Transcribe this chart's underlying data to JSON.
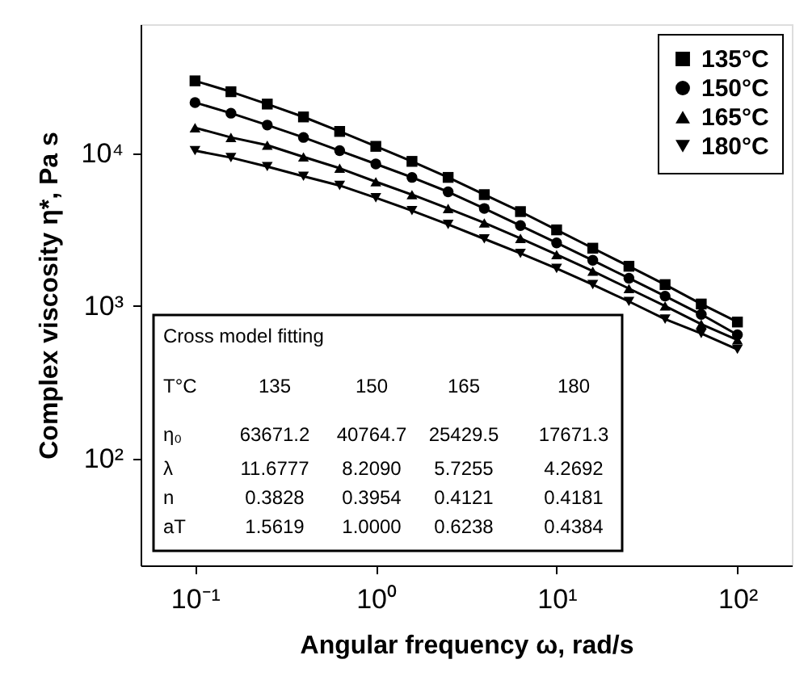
{
  "chart_data": {
    "type": "line",
    "xlabel": "Angular frequency ω, rad/s",
    "ylabel": "Complex viscosity η*, Pa s",
    "log": "xy",
    "xlim": [
      0.05,
      200
    ],
    "ylim": [
      20,
      70000
    ],
    "xticks": [
      {
        "value": 0.1,
        "label": "10⁻¹"
      },
      {
        "value": 1,
        "label": "10⁰"
      },
      {
        "value": 10,
        "label": "10¹"
      },
      {
        "value": 100,
        "label": "10²"
      }
    ],
    "yticks": [
      {
        "value": 100,
        "label": "10²"
      },
      {
        "value": 1000,
        "label": "10³"
      },
      {
        "value": 10000,
        "label": "10⁴"
      }
    ],
    "x": [
      0.1,
      0.158,
      0.251,
      0.398,
      0.631,
      1,
      1.585,
      2.512,
      3.981,
      6.31,
      10,
      15.85,
      25.12,
      39.81,
      63.1,
      100
    ],
    "series": [
      {
        "name": "135°C",
        "color": "#000000",
        "marker": "square",
        "values": [
          29800,
          25300,
          21000,
          17300,
          13900,
          11100,
          8850,
          6950,
          5360,
          4150,
          3150,
          2390,
          1820,
          1380,
          1030,
          785
        ]
      },
      {
        "name": "150°C",
        "color": "#000000",
        "marker": "circle",
        "values": [
          21500,
          18300,
          15300,
          12700,
          10400,
          8510,
          6950,
          5590,
          4350,
          3360,
          2590,
          1990,
          1520,
          1160,
          880,
          647
        ]
      },
      {
        "name": "165°C",
        "color": "#000000",
        "marker": "triangle",
        "values": [
          14700,
          12700,
          11300,
          9470,
          7980,
          6510,
          5360,
          4350,
          3500,
          2770,
          2170,
          1690,
          1300,
          1000,
          760,
          600
        ]
      },
      {
        "name": "180°C",
        "color": "#000000",
        "marker": "triangle-down",
        "values": [
          10400,
          9370,
          8180,
          7070,
          6150,
          5110,
          4210,
          3420,
          2750,
          2210,
          1760,
          1380,
          1070,
          820,
          660,
          520
        ]
      }
    ],
    "line_style": "solid",
    "grid": false,
    "legend": "top right",
    "annotations": [
      "Cross model fitting",
      "T°C",
      "135",
      "150",
      "165",
      "180",
      "η₀",
      "63671.2",
      "40764.7",
      "25429.5",
      "17671.3",
      "λ",
      "11.6777",
      "8.2090",
      "5.7255",
      "4.2692",
      "n",
      "0.3828",
      "0.3954",
      "0.4121",
      "0.4181",
      "aT",
      "1.5619",
      "1.0000",
      "0.6238",
      "0.4384"
    ]
  }
}
